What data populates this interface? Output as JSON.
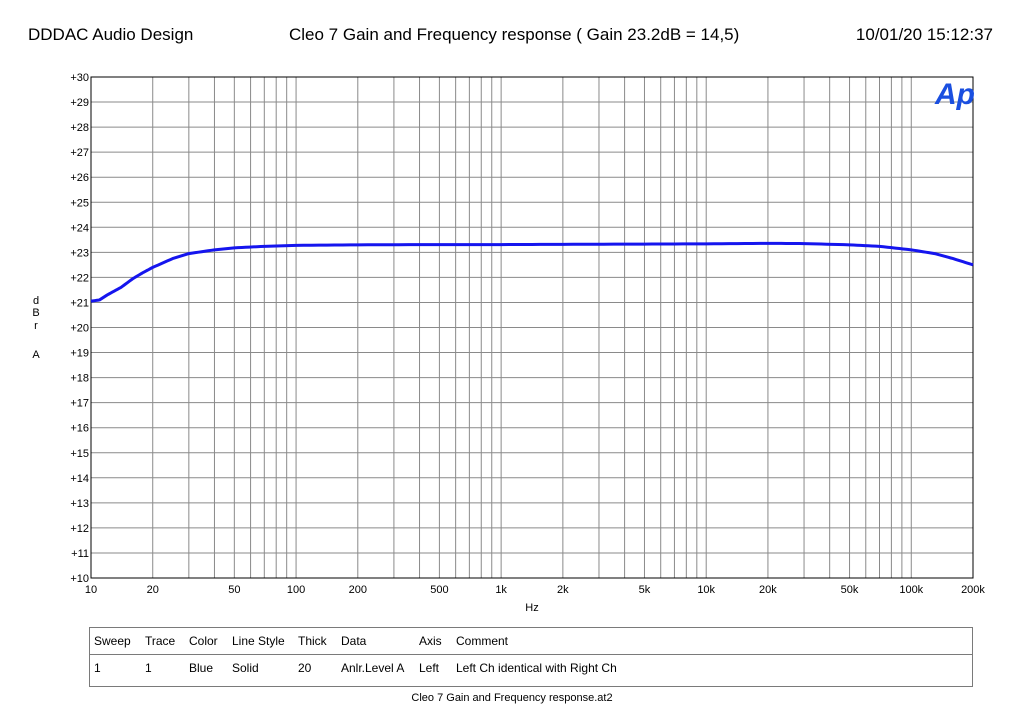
{
  "header": {
    "left": "DDDAC Audio Design",
    "center": "Cleo 7 Gain and Frequency response  ( Gain 23.2dB = 14,5)",
    "right": "10/01/20 15:12:37"
  },
  "logo_text": "Ap",
  "colors": {
    "trace": "#1515ee",
    "logo": "#1a4fe0",
    "grid": "#8a8a8a",
    "frame": "#000000"
  },
  "chart_data": {
    "type": "line",
    "x_scale": "log",
    "xlim": [
      10,
      200000
    ],
    "ylim": [
      10,
      30
    ],
    "grid": true,
    "xlabel": "Hz",
    "ylabel_lines": [
      "d",
      "B",
      "r",
      "",
      "A"
    ],
    "x_ticks": [
      {
        "value": 10,
        "label": "10"
      },
      {
        "value": 20,
        "label": "20"
      },
      {
        "value": 50,
        "label": "50"
      },
      {
        "value": 100,
        "label": "100"
      },
      {
        "value": 200,
        "label": "200"
      },
      {
        "value": 500,
        "label": "500"
      },
      {
        "value": 1000,
        "label": "1k"
      },
      {
        "value": 2000,
        "label": "2k"
      },
      {
        "value": 5000,
        "label": "5k"
      },
      {
        "value": 10000,
        "label": "10k"
      },
      {
        "value": 20000,
        "label": "20k"
      },
      {
        "value": 50000,
        "label": "50k"
      },
      {
        "value": 100000,
        "label": "100k"
      },
      {
        "value": 200000,
        "label": "200k"
      }
    ],
    "y_ticks": [
      {
        "value": 30,
        "label": "+30"
      },
      {
        "value": 29,
        "label": "+29"
      },
      {
        "value": 28,
        "label": "+28"
      },
      {
        "value": 27,
        "label": "+27"
      },
      {
        "value": 26,
        "label": "+26"
      },
      {
        "value": 25,
        "label": "+25"
      },
      {
        "value": 24,
        "label": "+24"
      },
      {
        "value": 23,
        "label": "+23"
      },
      {
        "value": 22,
        "label": "+22"
      },
      {
        "value": 21,
        "label": "+21"
      },
      {
        "value": 20,
        "label": "+20"
      },
      {
        "value": 19,
        "label": "+19"
      },
      {
        "value": 18,
        "label": "+18"
      },
      {
        "value": 17,
        "label": "+17"
      },
      {
        "value": 16,
        "label": "+16"
      },
      {
        "value": 15,
        "label": "+15"
      },
      {
        "value": 14,
        "label": "+14"
      },
      {
        "value": 13,
        "label": "+13"
      },
      {
        "value": 12,
        "label": "+12"
      },
      {
        "value": 11,
        "label": "+11"
      },
      {
        "value": 10,
        "label": "+10"
      }
    ],
    "series": [
      {
        "color": "#1515ee",
        "points": [
          [
            10,
            21.05
          ],
          [
            11,
            21.1
          ],
          [
            12,
            21.3
          ],
          [
            14,
            21.6
          ],
          [
            16,
            21.95
          ],
          [
            18,
            22.2
          ],
          [
            20,
            22.4
          ],
          [
            25,
            22.75
          ],
          [
            30,
            22.95
          ],
          [
            40,
            23.1
          ],
          [
            50,
            23.18
          ],
          [
            70,
            23.24
          ],
          [
            100,
            23.28
          ],
          [
            200,
            23.3
          ],
          [
            500,
            23.31
          ],
          [
            1000,
            23.31
          ],
          [
            2000,
            23.32
          ],
          [
            5000,
            23.33
          ],
          [
            10000,
            23.34
          ],
          [
            20000,
            23.36
          ],
          [
            30000,
            23.35
          ],
          [
            50000,
            23.3
          ],
          [
            70000,
            23.24
          ],
          [
            100000,
            23.1
          ],
          [
            130000,
            22.95
          ],
          [
            160000,
            22.75
          ],
          [
            200000,
            22.5
          ]
        ]
      }
    ]
  },
  "legend": {
    "headers": [
      "Sweep",
      "Trace",
      "Color",
      "Line Style",
      "Thick",
      "Data",
      "Axis",
      "Comment"
    ],
    "rows": [
      [
        "1",
        "1",
        "Blue",
        "Solid",
        "20",
        "Anlr.Level A",
        "Left",
        "Left Ch identical with Right Ch"
      ]
    ]
  },
  "footer": {
    "filename": "Cleo 7 Gain and Frequency response.at2"
  }
}
